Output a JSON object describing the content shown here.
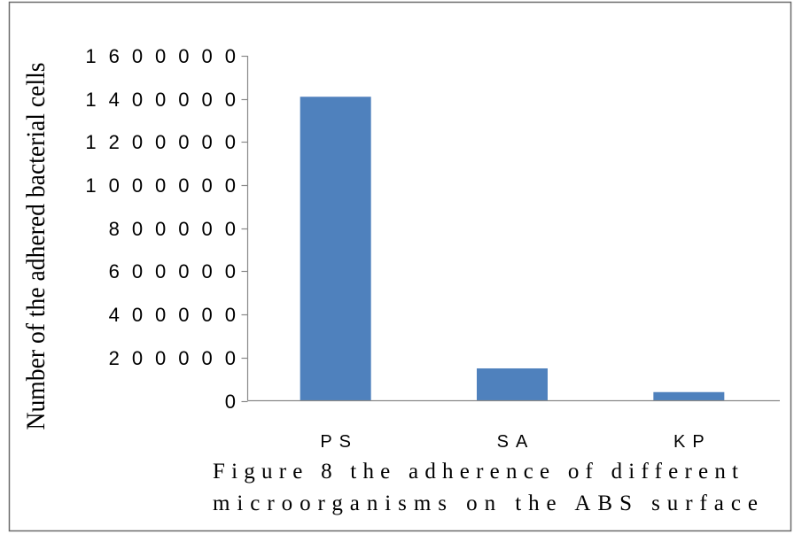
{
  "chart_data": {
    "type": "bar",
    "categories": [
      "PS",
      "SA",
      "KP"
    ],
    "values": [
      1410000,
      150000,
      40000
    ],
    "title": "",
    "xlabel": "",
    "ylabel": "Number of the adhered bacterial cells",
    "caption": [
      "Figure 8 the adherence of different",
      "microorganisms on the ABS surface"
    ],
    "ylim": [
      0,
      1600000
    ],
    "yticks": [
      0,
      200000,
      400000,
      600000,
      800000,
      1000000,
      1200000,
      1400000,
      1600000
    ],
    "ytick_labels": [
      "0",
      "200000",
      "400000",
      "600000",
      "800000",
      "1000000",
      "1200000",
      "1400000",
      "1600000"
    ],
    "grid": false
  },
  "colors": {
    "bar": "#4F81BD",
    "axis": "#898989",
    "frame": "#6B6B6B",
    "background": "#FFFFFF"
  }
}
